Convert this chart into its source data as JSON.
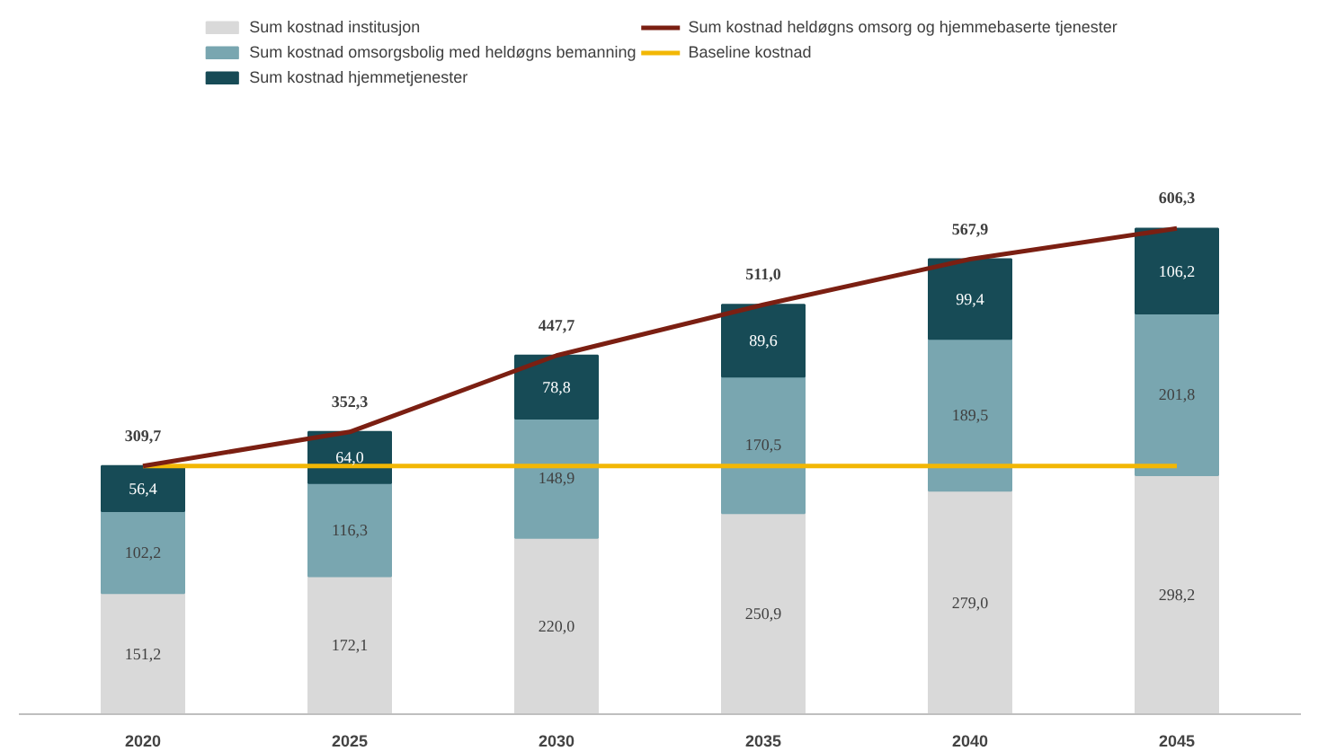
{
  "chart_data": {
    "type": "bar",
    "stacked": true,
    "categories": [
      "2020",
      "2025",
      "2030",
      "2035",
      "2040",
      "2045"
    ],
    "series": [
      {
        "name": "Sum kostnad institusjon",
        "color": "#d9d9d9",
        "values": [
          151.2,
          172.1,
          220.0,
          250.9,
          279.0,
          298.2
        ],
        "value_labels": [
          "151,2",
          "172,1",
          "220,0",
          "250,9",
          "279,0",
          "298,2"
        ]
      },
      {
        "name": "Sum kostnad omsorgsbolig med heldøgns bemanning",
        "color": "#79a6b0",
        "values": [
          102.2,
          116.3,
          148.9,
          170.5,
          189.5,
          201.8
        ],
        "value_labels": [
          "102,2",
          "116,3",
          "148,9",
          "170,5",
          "189,5",
          "201,8"
        ]
      },
      {
        "name": "Sum kostnad hjemmetjenester",
        "color": "#174b56",
        "values": [
          56.4,
          64.0,
          78.8,
          89.6,
          99.4,
          106.2
        ],
        "value_labels": [
          "56,4",
          "64,0",
          "78,8",
          "89,6",
          "99,4",
          "106,2"
        ]
      },
      {
        "name": "Sum kostnad heldøgns omsorg og hjemmebaserte tjenester",
        "type": "line",
        "color": "#7b1f12",
        "values": [
          309.7,
          352.3,
          447.7,
          511.0,
          567.9,
          606.3
        ],
        "value_labels": [
          "309,7",
          "352,3",
          "447,7",
          "511,0",
          "567,9",
          "606,3"
        ]
      }
    ],
    "ref_lines": [
      {
        "axis": "y",
        "value": 309.7,
        "label": "Baseline kostnad",
        "color": "#f2b705"
      }
    ],
    "legend": "top",
    "grid": false
  }
}
